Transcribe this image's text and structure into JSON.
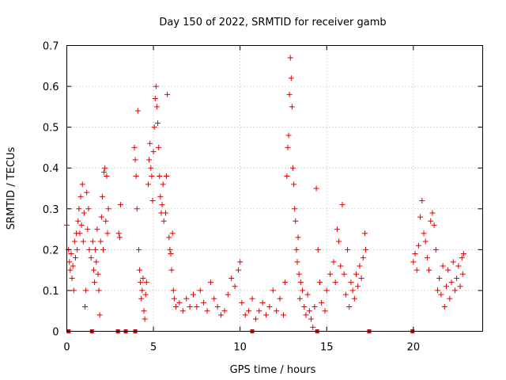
{
  "chart_data": {
    "type": "scatter",
    "title": "Day 150 of 2022, SRMTID for receiver gamb",
    "xlabel": "GPS time / hours",
    "ylabel": "SRMTID / TECUs",
    "xlim": [
      0,
      24
    ],
    "ylim": [
      0,
      0.7
    ],
    "xticks": [
      0,
      5,
      10,
      15,
      20
    ],
    "xtick_labels": [
      "0",
      "5",
      "10",
      "15",
      "20"
    ],
    "yticks": [
      0,
      0.1,
      0.2,
      0.3,
      0.4,
      0.5,
      0.6,
      0.7
    ],
    "ytick_labels": [
      "0",
      "0.1",
      "0.2",
      "0.3",
      "0.4",
      "0.5",
      "0.6",
      "0.7"
    ],
    "grid": true,
    "marker": "+",
    "colors": {
      "series": "#e00000",
      "grid": "#b0b0b0",
      "axes": "#000000"
    },
    "series": [
      {
        "name": "gamb",
        "points": [
          [
            0.0,
            0.26
          ],
          [
            0.1,
            0.2
          ],
          [
            0.15,
            0.17
          ],
          [
            0.2,
            0.15
          ],
          [
            0.25,
            0.19
          ],
          [
            0.3,
            0.13
          ],
          [
            0.35,
            0.16
          ],
          [
            0.4,
            0.1
          ],
          [
            0.45,
            0.22
          ],
          [
            0.5,
            0.18
          ],
          [
            0.55,
            0.24
          ],
          [
            0.6,
            0.2
          ],
          [
            0.65,
            0.27
          ],
          [
            0.7,
            0.3
          ],
          [
            0.75,
            0.24
          ],
          [
            0.8,
            0.33
          ],
          [
            0.85,
            0.26
          ],
          [
            0.9,
            0.36
          ],
          [
            0.95,
            0.22
          ],
          [
            1.0,
            0.29
          ],
          [
            1.05,
            0.06
          ],
          [
            1.1,
            0.1
          ],
          [
            1.15,
            0.34
          ],
          [
            1.2,
            0.25
          ],
          [
            1.25,
            0.3
          ],
          [
            1.3,
            0.2
          ],
          [
            1.4,
            0.18
          ],
          [
            1.5,
            0.22
          ],
          [
            1.55,
            0.15
          ],
          [
            1.6,
            0.12
          ],
          [
            1.65,
            0.2
          ],
          [
            1.7,
            0.17
          ],
          [
            1.75,
            0.25
          ],
          [
            1.8,
            0.14
          ],
          [
            1.85,
            0.1
          ],
          [
            1.9,
            0.04
          ],
          [
            1.95,
            0.22
          ],
          [
            2.0,
            0.28
          ],
          [
            2.05,
            0.33
          ],
          [
            2.1,
            0.2
          ],
          [
            2.15,
            0.39
          ],
          [
            2.2,
            0.4
          ],
          [
            2.25,
            0.27
          ],
          [
            2.3,
            0.38
          ],
          [
            2.35,
            0.24
          ],
          [
            2.4,
            0.3
          ],
          [
            3.0,
            0.24
          ],
          [
            3.05,
            0.23
          ],
          [
            3.1,
            0.31
          ],
          [
            3.9,
            0.45
          ],
          [
            3.95,
            0.42
          ],
          [
            4.0,
            0.38
          ],
          [
            4.05,
            0.3
          ],
          [
            4.1,
            0.54
          ],
          [
            4.15,
            0.2
          ],
          [
            4.2,
            0.15
          ],
          [
            4.25,
            0.12
          ],
          [
            4.3,
            0.08
          ],
          [
            4.35,
            0.1
          ],
          [
            4.4,
            0.13
          ],
          [
            4.45,
            0.05
          ],
          [
            4.5,
            0.03
          ],
          [
            4.55,
            0.09
          ],
          [
            4.6,
            0.12
          ],
          [
            4.7,
            0.36
          ],
          [
            4.75,
            0.42
          ],
          [
            4.8,
            0.46
          ],
          [
            4.85,
            0.4
          ],
          [
            4.9,
            0.38
          ],
          [
            4.95,
            0.32
          ],
          [
            5.0,
            0.44
          ],
          [
            5.05,
            0.5
          ],
          [
            5.1,
            0.57
          ],
          [
            5.15,
            0.6
          ],
          [
            5.2,
            0.55
          ],
          [
            5.25,
            0.51
          ],
          [
            5.3,
            0.45
          ],
          [
            5.35,
            0.38
          ],
          [
            5.4,
            0.33
          ],
          [
            5.45,
            0.29
          ],
          [
            5.5,
            0.31
          ],
          [
            5.55,
            0.36
          ],
          [
            5.6,
            0.27
          ],
          [
            5.7,
            0.29
          ],
          [
            5.75,
            0.38
          ],
          [
            5.8,
            0.58
          ],
          [
            5.9,
            0.23
          ],
          [
            5.95,
            0.2
          ],
          [
            6.0,
            0.19
          ],
          [
            6.05,
            0.15
          ],
          [
            6.1,
            0.24
          ],
          [
            6.15,
            0.1
          ],
          [
            6.2,
            0.08
          ],
          [
            6.3,
            0.06
          ],
          [
            6.5,
            0.07
          ],
          [
            6.7,
            0.05
          ],
          [
            6.9,
            0.08
          ],
          [
            7.1,
            0.06
          ],
          [
            7.3,
            0.09
          ],
          [
            7.5,
            0.06
          ],
          [
            7.7,
            0.1
          ],
          [
            7.9,
            0.07
          ],
          [
            8.1,
            0.05
          ],
          [
            8.3,
            0.12
          ],
          [
            8.5,
            0.08
          ],
          [
            8.7,
            0.06
          ],
          [
            8.9,
            0.04
          ],
          [
            9.1,
            0.05
          ],
          [
            9.3,
            0.09
          ],
          [
            9.5,
            0.13
          ],
          [
            9.7,
            0.11
          ],
          [
            9.9,
            0.15
          ],
          [
            10.0,
            0.17
          ],
          [
            10.1,
            0.07
          ],
          [
            10.3,
            0.04
          ],
          [
            10.5,
            0.05
          ],
          [
            10.7,
            0.08
          ],
          [
            10.9,
            0.03
          ],
          [
            11.1,
            0.05
          ],
          [
            11.3,
            0.07
          ],
          [
            11.5,
            0.04
          ],
          [
            11.7,
            0.06
          ],
          [
            11.9,
            0.1
          ],
          [
            12.1,
            0.05
          ],
          [
            12.3,
            0.08
          ],
          [
            12.5,
            0.04
          ],
          [
            12.6,
            0.12
          ],
          [
            12.7,
            0.38
          ],
          [
            12.75,
            0.45
          ],
          [
            12.8,
            0.48
          ],
          [
            12.85,
            0.58
          ],
          [
            12.9,
            0.67
          ],
          [
            12.95,
            0.62
          ],
          [
            13.0,
            0.55
          ],
          [
            13.05,
            0.4
          ],
          [
            13.1,
            0.36
          ],
          [
            13.15,
            0.3
          ],
          [
            13.2,
            0.27
          ],
          [
            13.25,
            0.2
          ],
          [
            13.3,
            0.17
          ],
          [
            13.35,
            0.23
          ],
          [
            13.4,
            0.14
          ],
          [
            13.45,
            0.08
          ],
          [
            13.5,
            0.12
          ],
          [
            13.6,
            0.1
          ],
          [
            13.7,
            0.06
          ],
          [
            13.8,
            0.04
          ],
          [
            13.9,
            0.09
          ],
          [
            14.0,
            0.05
          ],
          [
            14.1,
            0.03
          ],
          [
            14.2,
            0.01
          ],
          [
            14.3,
            0.06
          ],
          [
            14.4,
            0.35
          ],
          [
            14.5,
            0.2
          ],
          [
            14.6,
            0.12
          ],
          [
            14.7,
            0.07
          ],
          [
            14.9,
            0.05
          ],
          [
            15.0,
            0.1
          ],
          [
            15.2,
            0.14
          ],
          [
            15.4,
            0.17
          ],
          [
            15.5,
            0.12
          ],
          [
            15.6,
            0.25
          ],
          [
            15.7,
            0.22
          ],
          [
            15.8,
            0.16
          ],
          [
            15.9,
            0.31
          ],
          [
            16.0,
            0.14
          ],
          [
            16.1,
            0.09
          ],
          [
            16.2,
            0.2
          ],
          [
            16.3,
            0.06
          ],
          [
            16.4,
            0.12
          ],
          [
            16.5,
            0.1
          ],
          [
            16.6,
            0.08
          ],
          [
            16.7,
            0.14
          ],
          [
            16.8,
            0.11
          ],
          [
            16.9,
            0.16
          ],
          [
            17.0,
            0.13
          ],
          [
            17.1,
            0.18
          ],
          [
            17.2,
            0.24
          ],
          [
            17.25,
            0.2
          ],
          [
            20.0,
            0.17
          ],
          [
            20.1,
            0.19
          ],
          [
            20.2,
            0.15
          ],
          [
            20.3,
            0.21
          ],
          [
            20.4,
            0.28
          ],
          [
            20.5,
            0.32
          ],
          [
            20.6,
            0.24
          ],
          [
            20.7,
            0.22
          ],
          [
            20.8,
            0.18
          ],
          [
            20.9,
            0.15
          ],
          [
            21.0,
            0.27
          ],
          [
            21.1,
            0.29
          ],
          [
            21.2,
            0.26
          ],
          [
            21.3,
            0.2
          ],
          [
            21.4,
            0.1
          ],
          [
            21.5,
            0.13
          ],
          [
            21.6,
            0.09
          ],
          [
            21.7,
            0.16
          ],
          [
            21.8,
            0.06
          ],
          [
            21.9,
            0.11
          ],
          [
            22.0,
            0.15
          ],
          [
            22.1,
            0.08
          ],
          [
            22.2,
            0.12
          ],
          [
            22.3,
            0.17
          ],
          [
            22.4,
            0.1
          ],
          [
            22.5,
            0.13
          ],
          [
            22.6,
            0.16
          ],
          [
            22.7,
            0.11
          ],
          [
            22.8,
            0.18
          ],
          [
            22.85,
            0.14
          ],
          [
            22.9,
            0.19
          ]
        ]
      }
    ],
    "gap_marks_x": [
      0.1,
      1.45,
      2.95,
      3.4,
      3.95,
      10.7,
      14.45,
      17.45,
      19.95
    ]
  }
}
